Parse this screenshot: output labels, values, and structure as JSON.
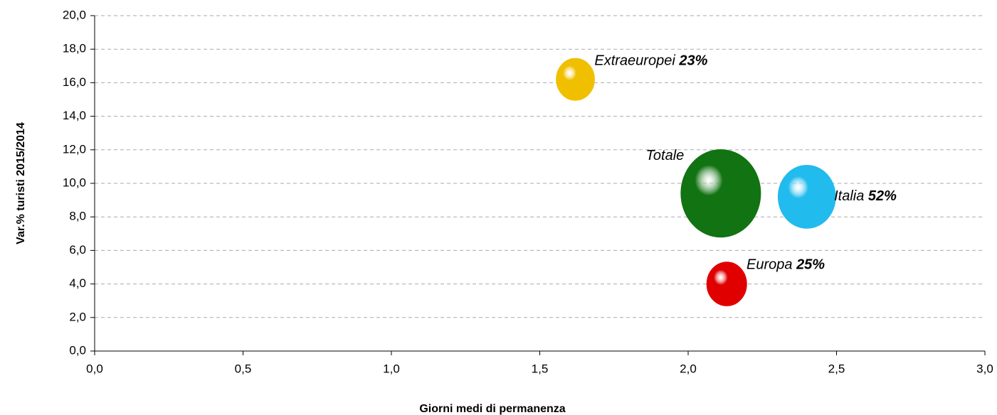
{
  "chart_data": {
    "type": "bubble",
    "xlabel": "Giorni medi di permanenza",
    "ylabel": "Var.% turisti 2015/2014",
    "xlim": [
      0,
      3
    ],
    "ylim": [
      0,
      20
    ],
    "xticks": [
      {
        "value": 0,
        "label": "0,0"
      },
      {
        "value": 0.5,
        "label": "0,5"
      },
      {
        "value": 1,
        "label": "1,0"
      },
      {
        "value": 1.5,
        "label": "1,5"
      },
      {
        "value": 2,
        "label": "2,0"
      },
      {
        "value": 2.5,
        "label": "2,5"
      },
      {
        "value": 3,
        "label": "3,0"
      }
    ],
    "yticks": [
      {
        "value": 0,
        "label": "0,0"
      },
      {
        "value": 2,
        "label": "2,0"
      },
      {
        "value": 4,
        "label": "4,0"
      },
      {
        "value": 6,
        "label": "6,0"
      },
      {
        "value": 8,
        "label": "8,0"
      },
      {
        "value": 10,
        "label": "10,0"
      },
      {
        "value": 12,
        "label": "12,0"
      },
      {
        "value": 14,
        "label": "14,0"
      },
      {
        "value": 16,
        "label": "16,0"
      },
      {
        "value": 18,
        "label": "18,0"
      },
      {
        "value": 20,
        "label": "20,0"
      }
    ],
    "grid": true,
    "series": [
      {
        "name": "Extraeuropei",
        "color": "#f0c000",
        "x": [
          1.62
        ],
        "values": [
          16.2
        ],
        "sizes": [
          23
        ],
        "size_labels": [
          "23%"
        ]
      },
      {
        "name": "Totale",
        "color": "#127312",
        "x": [
          2.11
        ],
        "values": [
          9.4
        ],
        "sizes": [
          100
        ]
      },
      {
        "name": "Italia",
        "color": "#22bbee",
        "x": [
          2.4
        ],
        "values": [
          9.2
        ],
        "sizes": [
          52
        ],
        "size_labels": [
          "52%"
        ]
      },
      {
        "name": "Europa",
        "color": "#e00000",
        "x": [
          2.13
        ],
        "values": [
          4.0
        ],
        "sizes": [
          25
        ],
        "size_labels": [
          "25%"
        ]
      }
    ]
  }
}
